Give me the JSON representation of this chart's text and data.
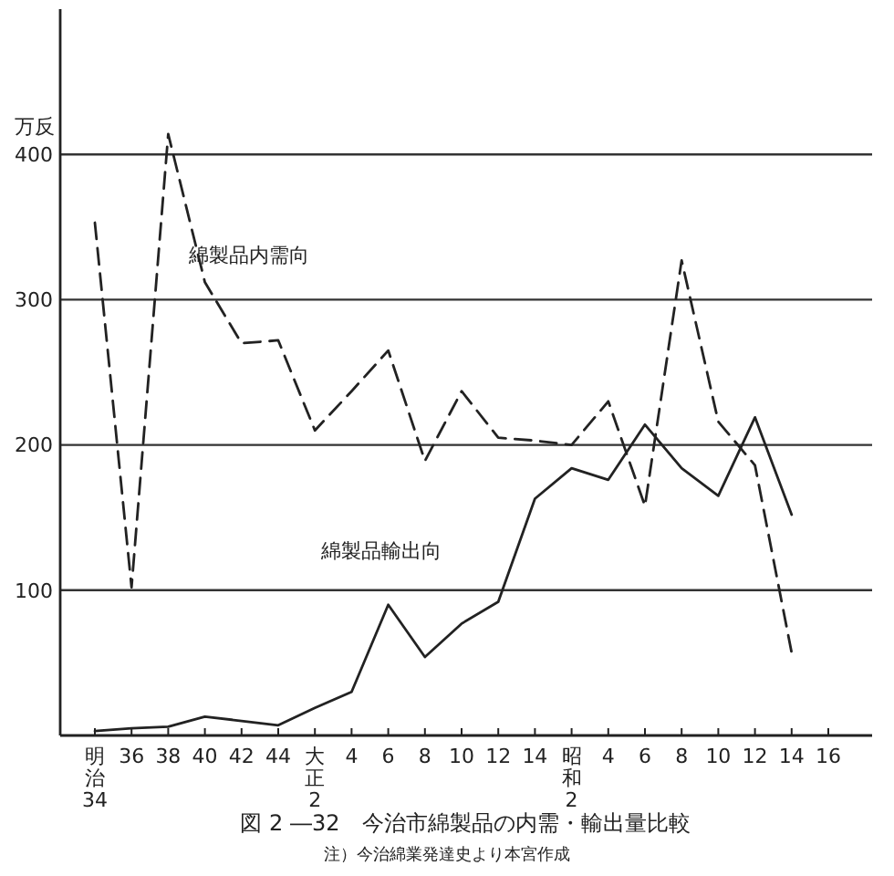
{
  "chart_data": {
    "type": "line",
    "title": "図 2 ―32　今治市綿製品の内需・輸出量比較",
    "ylabel": "万反",
    "annotations": [
      "注）今治綿業発達史より本宮作成"
    ],
    "categories": [
      "明治34",
      "36",
      "38",
      "40",
      "42",
      "44",
      "大正2",
      "4",
      "6",
      "8",
      "10",
      "12",
      "14",
      "昭和2",
      "4",
      "6",
      "8",
      "10",
      "12",
      "14",
      "16"
    ],
    "series": [
      {
        "name": "綿製品内需向",
        "color": "#222222",
        "line_style": "dashed",
        "values": [
          353,
          102,
          414,
          312,
          270,
          272,
          210,
          237,
          265,
          189,
          237,
          205,
          203,
          200,
          230,
          158,
          327,
          216,
          186,
          57,
          null
        ]
      },
      {
        "name": "綿製品輸出向",
        "color": "#222222",
        "line_style": "solid",
        "values": [
          3,
          5,
          6,
          13,
          10,
          7,
          19,
          30,
          90,
          54,
          77,
          92,
          163,
          184,
          176,
          214,
          184,
          165,
          219,
          152,
          null
        ]
      }
    ],
    "ylim": [
      0,
      500
    ],
    "yticks": [
      100,
      200,
      300,
      400
    ],
    "grid": "y",
    "legend": false,
    "marker": "none"
  }
}
